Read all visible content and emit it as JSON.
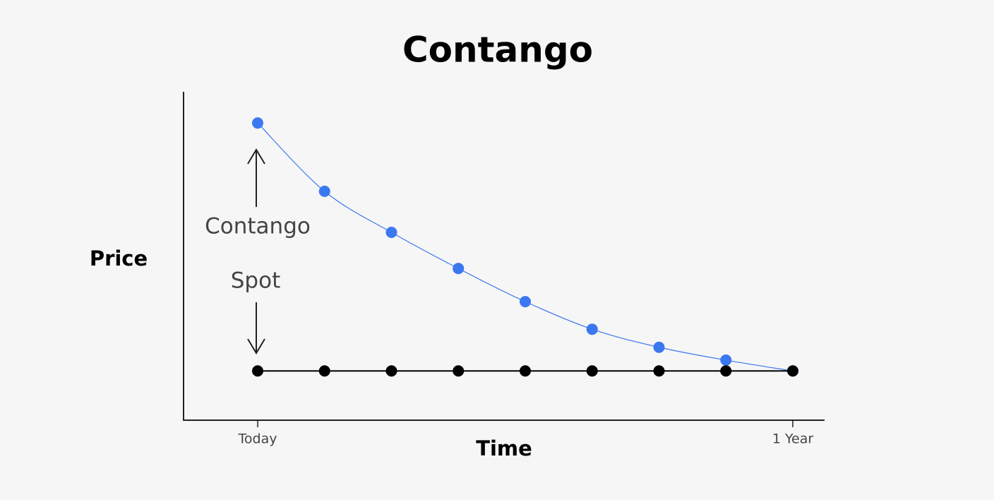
{
  "chart_data": {
    "type": "line",
    "title": "Contango",
    "x_label": "Time",
    "y_label": "Price",
    "categories": [
      "Today",
      null,
      null,
      null,
      null,
      null,
      null,
      null,
      "1 Year"
    ],
    "series": [
      {
        "name": "Contango",
        "color": "#3b78f0",
        "values": [
          90.5,
          69.7,
          57.2,
          46.2,
          36.1,
          27.7,
          22.2,
          18.3,
          15
        ]
      },
      {
        "name": "Spot",
        "color": "#000000",
        "values": [
          15,
          15,
          15,
          15,
          15,
          15,
          15,
          15,
          15
        ]
      }
    ],
    "ylim": [
      0,
      100
    ]
  }
}
